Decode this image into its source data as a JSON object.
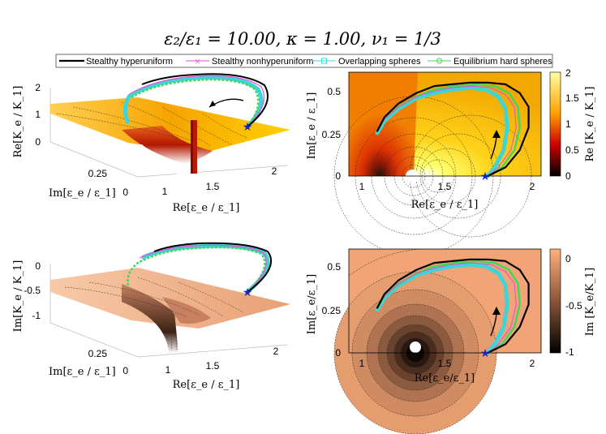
{
  "title": "ε₂/ε₁ = 10.00,  κ = 1.00,  ν₁ = 1/3",
  "legend": {
    "placement": "top",
    "items": [
      {
        "label": "Stealthy hyperuniform",
        "color": "#000000",
        "marker": "none"
      },
      {
        "label": "Stealthy nonhyperuniform",
        "color": "#e64fd6",
        "marker": "x"
      },
      {
        "label": "Overlapping spheres",
        "color": "#3ed4d8",
        "marker": "square"
      },
      {
        "label": "Equilibrium hard spheres",
        "color": "#42d65a",
        "marker": "circle"
      }
    ]
  },
  "colors": {
    "hyperuniform": "#000000",
    "nonhyperuniform": "#e64fd6",
    "overlapping": "#3ed4d8",
    "equilibrium": "#42d65a",
    "start_marker": "#1a25c8"
  },
  "chart_data": [
    {
      "type": "surface3d",
      "panel": "top-left",
      "zlabel": "Re[K_e / K_1]",
      "xlabel": "Re[ε_e / ε_1]",
      "ylabel": "Im[ε_e / ε_1]",
      "zticks": [
        "0",
        "1",
        "2"
      ],
      "xticks": [
        "1",
        "1.5",
        "2"
      ],
      "yticks": [
        "0",
        "0.25"
      ],
      "zlim": [
        0,
        2
      ],
      "colormap": "hot"
    },
    {
      "type": "contour",
      "panel": "top-right",
      "xlabel": "Re[ε_e / ε_1]",
      "ylabel": "Im[ε_e / ε_1]",
      "xlim": [
        0.92,
        2.0
      ],
      "ylim": [
        0,
        0.6
      ],
      "xticks": [
        "1",
        "1.5",
        "2"
      ],
      "yticks": [
        "0",
        "0.25",
        "0.5"
      ],
      "colorbar": {
        "label": "Re [K_e / K_1]",
        "ticks": [
          "0",
          "0.5",
          "1",
          "1.5",
          "2"
        ],
        "range": [
          0,
          2
        ],
        "colormap": "hot"
      },
      "series": [
        {
          "name": "Stealthy hyperuniform",
          "x": [
            1.7,
            1.8,
            1.88,
            1.93,
            1.93,
            1.88,
            1.8,
            1.7,
            1.6,
            1.5,
            1.4,
            1.3,
            1.2,
            1.12,
            1.08
          ],
          "y": [
            0,
            0.05,
            0.15,
            0.28,
            0.4,
            0.48,
            0.53,
            0.54,
            0.54,
            0.53,
            0.52,
            0.48,
            0.42,
            0.34,
            0.26
          ]
        },
        {
          "name": "Stealthy nonhyperuniform",
          "x": [
            1.7,
            1.76,
            1.83,
            1.86,
            1.85,
            1.8,
            1.72,
            1.62,
            1.5,
            1.4,
            1.3,
            1.2,
            1.12,
            1.08
          ],
          "y": [
            0,
            0.05,
            0.15,
            0.28,
            0.4,
            0.47,
            0.51,
            0.52,
            0.51,
            0.49,
            0.46,
            0.4,
            0.33,
            0.26
          ]
        },
        {
          "name": "Overlapping spheres",
          "x": [
            1.7,
            1.74,
            1.79,
            1.81,
            1.8,
            1.76,
            1.69,
            1.6,
            1.5,
            1.4,
            1.3,
            1.2,
            1.12,
            1.08
          ],
          "y": [
            0,
            0.05,
            0.15,
            0.28,
            0.39,
            0.46,
            0.5,
            0.51,
            0.5,
            0.48,
            0.45,
            0.39,
            0.32,
            0.25
          ]
        },
        {
          "name": "Equilibrium hard spheres",
          "x": [
            1.7,
            1.78,
            1.85,
            1.88,
            1.87,
            1.82,
            1.74,
            1.64,
            1.52,
            1.4,
            1.3,
            1.2,
            1.12,
            1.08
          ],
          "y": [
            0,
            0.05,
            0.15,
            0.28,
            0.4,
            0.48,
            0.52,
            0.53,
            0.52,
            0.5,
            0.46,
            0.4,
            0.33,
            0.26
          ]
        }
      ]
    },
    {
      "type": "surface3d",
      "panel": "bottom-left",
      "zlabel": "Im[K_e / K_1]",
      "xlabel": "Re[ε_e / ε_1]",
      "ylabel": "Im[ε_e / ε_1]",
      "zticks": [
        "0",
        "-0.5",
        "-1"
      ],
      "xticks": [
        "1",
        "1.5",
        "2"
      ],
      "yticks": [
        "0",
        "0.25"
      ],
      "zlim": [
        -1,
        0
      ],
      "colormap": "copper"
    },
    {
      "type": "contour",
      "panel": "bottom-right",
      "xlabel": "Re[ε_e/ε_1]",
      "ylabel": "Im[ε_e/ε_1]",
      "xlim": [
        0.92,
        2.0
      ],
      "ylim": [
        0,
        0.6
      ],
      "xticks": [
        "1",
        "1.5",
        "2"
      ],
      "yticks": [
        "0",
        "0.25",
        "0.5"
      ],
      "colorbar": {
        "label": "Im [K_e/K_1]",
        "ticks": [
          "0",
          "-0.5",
          "-1"
        ],
        "range": [
          -1,
          0
        ],
        "colormap": "copper"
      },
      "series": [
        {
          "name": "Stealthy hyperuniform",
          "x": [
            1.7,
            1.8,
            1.88,
            1.93,
            1.93,
            1.88,
            1.8,
            1.7,
            1.6,
            1.5,
            1.4,
            1.3,
            1.2,
            1.12,
            1.08
          ],
          "y": [
            0,
            0.05,
            0.15,
            0.28,
            0.4,
            0.48,
            0.53,
            0.54,
            0.54,
            0.53,
            0.52,
            0.48,
            0.42,
            0.34,
            0.26
          ]
        },
        {
          "name": "Stealthy nonhyperuniform",
          "x": [
            1.7,
            1.76,
            1.83,
            1.86,
            1.85,
            1.8,
            1.72,
            1.62,
            1.5,
            1.4,
            1.3,
            1.2,
            1.12,
            1.08
          ],
          "y": [
            0,
            0.05,
            0.15,
            0.28,
            0.4,
            0.47,
            0.51,
            0.52,
            0.51,
            0.49,
            0.46,
            0.4,
            0.33,
            0.26
          ]
        },
        {
          "name": "Overlapping spheres",
          "x": [
            1.7,
            1.74,
            1.79,
            1.81,
            1.8,
            1.76,
            1.69,
            1.6,
            1.5,
            1.4,
            1.3,
            1.2,
            1.12,
            1.08
          ],
          "y": [
            0,
            0.05,
            0.15,
            0.28,
            0.39,
            0.46,
            0.5,
            0.51,
            0.5,
            0.48,
            0.45,
            0.39,
            0.32,
            0.25
          ]
        },
        {
          "name": "Equilibrium hard spheres",
          "x": [
            1.7,
            1.78,
            1.85,
            1.88,
            1.87,
            1.82,
            1.74,
            1.64,
            1.52,
            1.4,
            1.3,
            1.2,
            1.12,
            1.08
          ],
          "y": [
            0,
            0.05,
            0.15,
            0.28,
            0.4,
            0.48,
            0.52,
            0.53,
            0.52,
            0.5,
            0.46,
            0.4,
            0.33,
            0.26
          ]
        }
      ]
    }
  ]
}
